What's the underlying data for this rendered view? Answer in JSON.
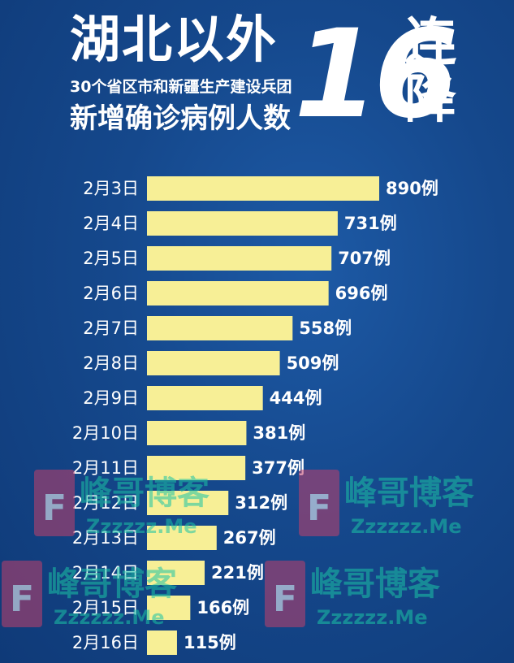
{
  "header": {
    "title_main": "湖北以外",
    "title_sub": "30个省区市和新疆生产建设兵团",
    "title_third": "新增确诊病例人数",
    "big_number": "16",
    "side_text": "连降"
  },
  "watermark": {
    "logo_letter": "F",
    "brand": "峰哥博客",
    "url": "Zzzzzz.Me"
  },
  "colors": {
    "background": "#15488c",
    "bar": "#f7ef96",
    "text": "#ffffff"
  },
  "chart_data": {
    "type": "bar",
    "orientation": "horizontal",
    "title": "湖北以外30个省区市和新疆生产建设兵团新增确诊病例人数16连降",
    "categories": [
      "2月3日",
      "2月4日",
      "2月5日",
      "2月6日",
      "2月7日",
      "2月8日",
      "2月9日",
      "2月10日",
      "2月11日",
      "2月12日",
      "2月13日",
      "2月14日",
      "2月15日",
      "2月16日"
    ],
    "values": [
      890,
      731,
      707,
      696,
      558,
      509,
      444,
      381,
      377,
      312,
      267,
      221,
      166,
      115
    ],
    "value_labels": [
      "890例",
      "731例",
      "707例",
      "696例",
      "558例",
      "509例",
      "444例",
      "381例",
      "377例",
      "312例",
      "267例",
      "221例",
      "166例",
      "115例"
    ],
    "xlim": [
      0,
      890
    ],
    "grid": false,
    "legend": "none"
  }
}
